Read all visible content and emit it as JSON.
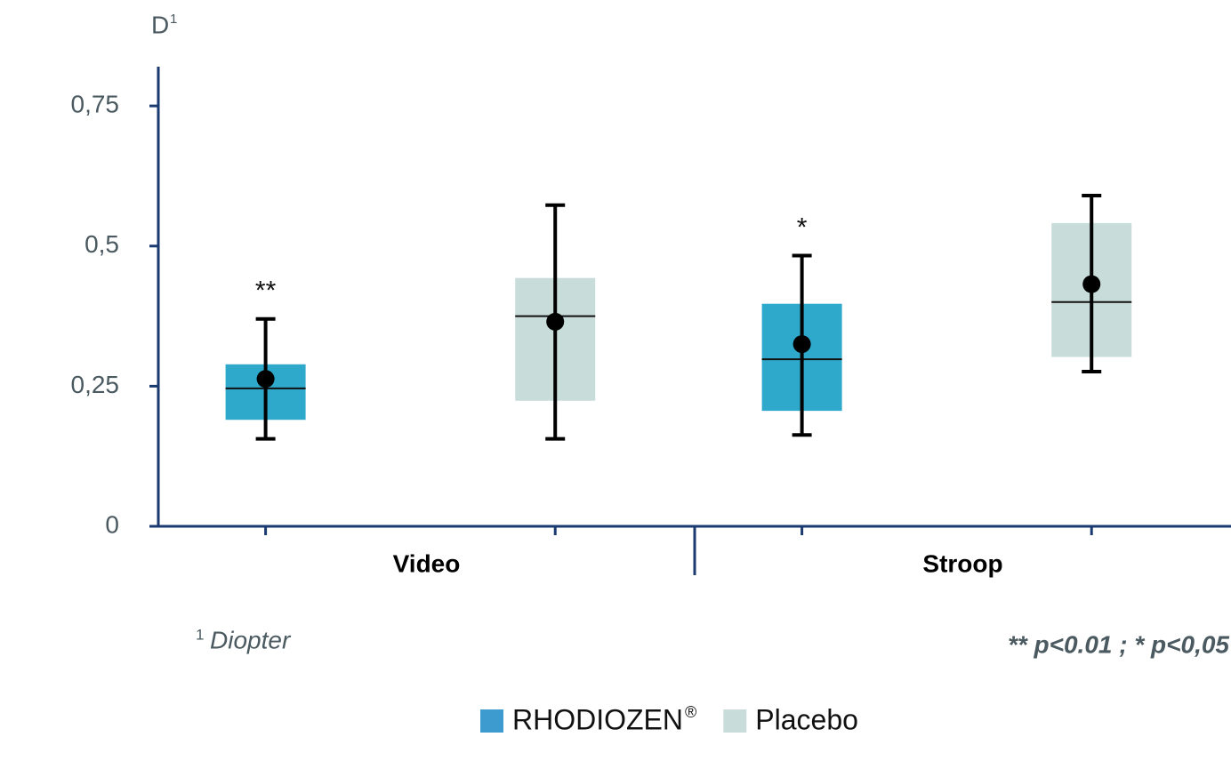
{
  "chart_data": {
    "type": "box",
    "y_label": "D",
    "y_label_sup": "1",
    "categories": [
      "Video",
      "Stroop"
    ],
    "series": [
      {
        "name": "RHODIOZEN",
        "name_sup": "®",
        "color": "#2ea9cc",
        "legend_color": "#3d9bd0",
        "q1": [
          0.19,
          0.206
        ],
        "median": [
          0.246,
          0.298
        ],
        "q3": [
          0.289,
          0.397
        ],
        "whisker_low": [
          0.156,
          0.163
        ],
        "whisker_high": [
          0.37,
          0.483
        ],
        "mean": [
          0.263,
          0.325
        ],
        "annotations": [
          "**",
          "*"
        ]
      },
      {
        "name": "Placebo",
        "color": "#c8ddd9",
        "q1": [
          0.224,
          0.302
        ],
        "median": [
          0.375,
          0.4
        ],
        "q3": [
          0.443,
          0.541
        ],
        "whisker_low": [
          0.156,
          0.276
        ],
        "whisker_high": [
          0.573,
          0.59
        ],
        "mean": [
          0.365,
          0.432
        ],
        "annotations": [
          null,
          null
        ]
      }
    ],
    "ylim": [
      0,
      0.82
    ],
    "yticks": [
      0,
      {
        "value": 0.25,
        "label": "0,25"
      },
      {
        "value": 0.5,
        "label": "0,5"
      },
      {
        "value": 0.75,
        "label": "0,75"
      }
    ],
    "footnote": {
      "marker": "1",
      "text": "Diopter"
    },
    "significance_note": "** p<0.01 ; * p<0,05"
  }
}
